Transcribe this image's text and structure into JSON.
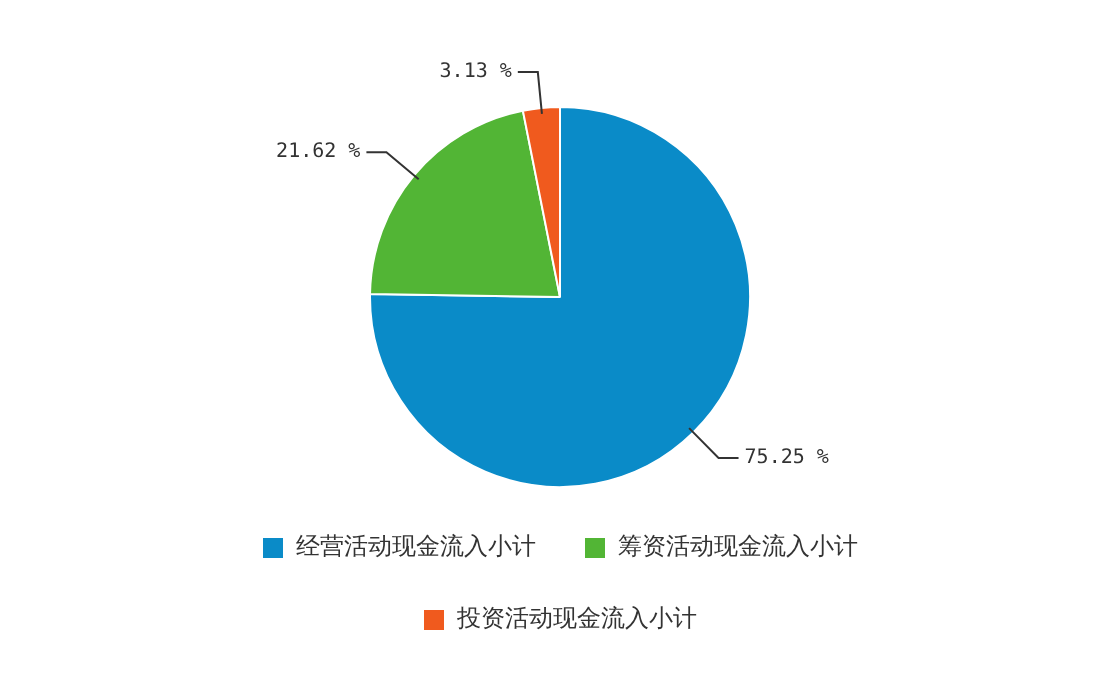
{
  "chart_data": {
    "type": "pie",
    "categories": [
      "经营活动现金流入小计",
      "筹资活动现金流入小计",
      "投资活动现金流入小计"
    ],
    "values": [
      75.25,
      21.62,
      3.13
    ],
    "colors": [
      "#0a8bc8",
      "#52b535",
      "#f05a1e"
    ],
    "value_labels": [
      "75.25 %",
      "21.62 %",
      "3.13 %"
    ],
    "legend": "bottom"
  }
}
